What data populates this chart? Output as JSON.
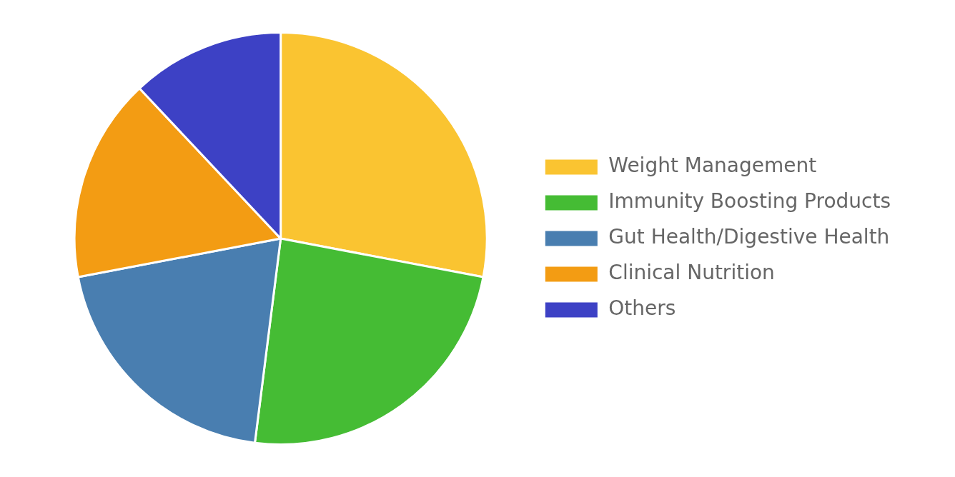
{
  "chart_data": {
    "type": "pie",
    "categories": [
      "Weight Management",
      "Immunity Boosting Products",
      "Gut Health/Digestive Health",
      "Clinical Nutrition",
      "Others"
    ],
    "values": [
      28,
      24,
      20,
      16,
      12
    ],
    "colors": [
      "#fac431",
      "#45bc34",
      "#497eb0",
      "#f39c13",
      "#3d41c5"
    ],
    "legend": "right"
  }
}
